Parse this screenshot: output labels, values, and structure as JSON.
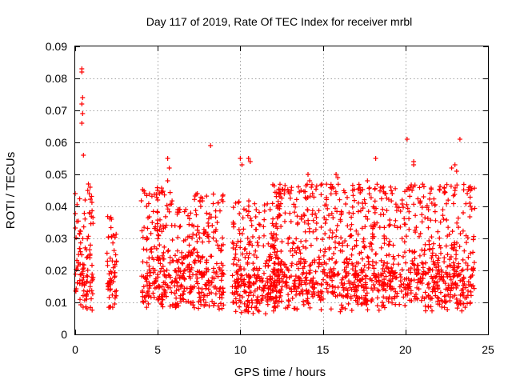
{
  "chart_data": {
    "type": "scatter",
    "title": "Day 117 of 2019, Rate Of TEC Index for receiver mrbl",
    "xlabel": "GPS time / hours",
    "ylabel": "ROTI / TECUs",
    "xlim": [
      0,
      25
    ],
    "ylim": [
      0,
      0.09
    ],
    "xticks": [
      0,
      5,
      10,
      15,
      20,
      25
    ],
    "xtick_labels": [
      "0",
      "5",
      "10",
      "15",
      "20",
      "25"
    ],
    "yticks": [
      0,
      0.01,
      0.02,
      0.03,
      0.04,
      0.05,
      0.06,
      0.07,
      0.08,
      0.09
    ],
    "ytick_labels": [
      "0",
      "0.01",
      "0.02",
      "0.03",
      "0.04",
      "0.05",
      "0.06",
      "0.07",
      "0.08",
      "0.09"
    ],
    "grid": true,
    "marker": "plus",
    "color": "#ff0000",
    "segments": [
      {
        "t": [
          0.0,
          1.1
        ],
        "lo": 0.004,
        "hi": 0.045
      },
      {
        "t": [
          1.9,
          2.5
        ],
        "lo": 0.005,
        "hi": 0.037
      },
      {
        "t": [
          4.0,
          5.9
        ],
        "lo": 0.004,
        "hi": 0.046
      },
      {
        "t": [
          5.9,
          7.0
        ],
        "lo": 0.005,
        "hi": 0.04
      },
      {
        "t": [
          7.0,
          9.0
        ],
        "lo": 0.004,
        "hi": 0.044
      },
      {
        "t": [
          9.5,
          12.5
        ],
        "lo": 0.003,
        "hi": 0.042
      },
      {
        "t": [
          11.8,
          24.2
        ],
        "lo": 0.004,
        "hi": 0.047
      }
    ],
    "points": [
      {
        "x": 0.4,
        "y": 0.083
      },
      {
        "x": 0.4,
        "y": 0.082
      },
      {
        "x": 0.45,
        "y": 0.074
      },
      {
        "x": 0.4,
        "y": 0.072
      },
      {
        "x": 0.45,
        "y": 0.069
      },
      {
        "x": 0.4,
        "y": 0.066
      },
      {
        "x": 0.5,
        "y": 0.056
      },
      {
        "x": 0.8,
        "y": 0.047
      },
      {
        "x": 0.9,
        "y": 0.046
      },
      {
        "x": 0.0,
        "y": 0.044
      },
      {
        "x": 0.6,
        "y": 0.042
      },
      {
        "x": 2.2,
        "y": 0.036
      },
      {
        "x": 2.3,
        "y": 0.031
      },
      {
        "x": 5.0,
        "y": 0.045
      },
      {
        "x": 5.1,
        "y": 0.044
      },
      {
        "x": 5.0,
        "y": 0.042
      },
      {
        "x": 5.6,
        "y": 0.055
      },
      {
        "x": 5.7,
        "y": 0.052
      },
      {
        "x": 5.6,
        "y": 0.048
      },
      {
        "x": 7.4,
        "y": 0.044
      },
      {
        "x": 7.6,
        "y": 0.04
      },
      {
        "x": 8.2,
        "y": 0.059
      },
      {
        "x": 8.6,
        "y": 0.035
      },
      {
        "x": 10.0,
        "y": 0.055
      },
      {
        "x": 10.1,
        "y": 0.053
      },
      {
        "x": 10.5,
        "y": 0.055
      },
      {
        "x": 10.6,
        "y": 0.054
      },
      {
        "x": 11.8,
        "y": 0.039
      },
      {
        "x": 12.4,
        "y": 0.043
      },
      {
        "x": 13.0,
        "y": 0.044
      },
      {
        "x": 14.1,
        "y": 0.05
      },
      {
        "x": 14.2,
        "y": 0.048
      },
      {
        "x": 14.3,
        "y": 0.046
      },
      {
        "x": 15.8,
        "y": 0.05
      },
      {
        "x": 15.9,
        "y": 0.049
      },
      {
        "x": 15.8,
        "y": 0.044
      },
      {
        "x": 16.8,
        "y": 0.045
      },
      {
        "x": 17.4,
        "y": 0.041
      },
      {
        "x": 17.7,
        "y": 0.048
      },
      {
        "x": 18.2,
        "y": 0.055
      },
      {
        "x": 18.5,
        "y": 0.046
      },
      {
        "x": 19.2,
        "y": 0.044
      },
      {
        "x": 19.8,
        "y": 0.042
      },
      {
        "x": 20.1,
        "y": 0.061
      },
      {
        "x": 20.5,
        "y": 0.054
      },
      {
        "x": 20.5,
        "y": 0.053
      },
      {
        "x": 20.4,
        "y": 0.045
      },
      {
        "x": 21.1,
        "y": 0.043
      },
      {
        "x": 21.6,
        "y": 0.041
      },
      {
        "x": 22.8,
        "y": 0.052
      },
      {
        "x": 23.0,
        "y": 0.053
      },
      {
        "x": 23.1,
        "y": 0.051
      },
      {
        "x": 23.0,
        "y": 0.045
      },
      {
        "x": 23.3,
        "y": 0.061
      },
      {
        "x": 23.5,
        "y": 0.038
      },
      {
        "x": 23.9,
        "y": 0.041
      }
    ]
  }
}
